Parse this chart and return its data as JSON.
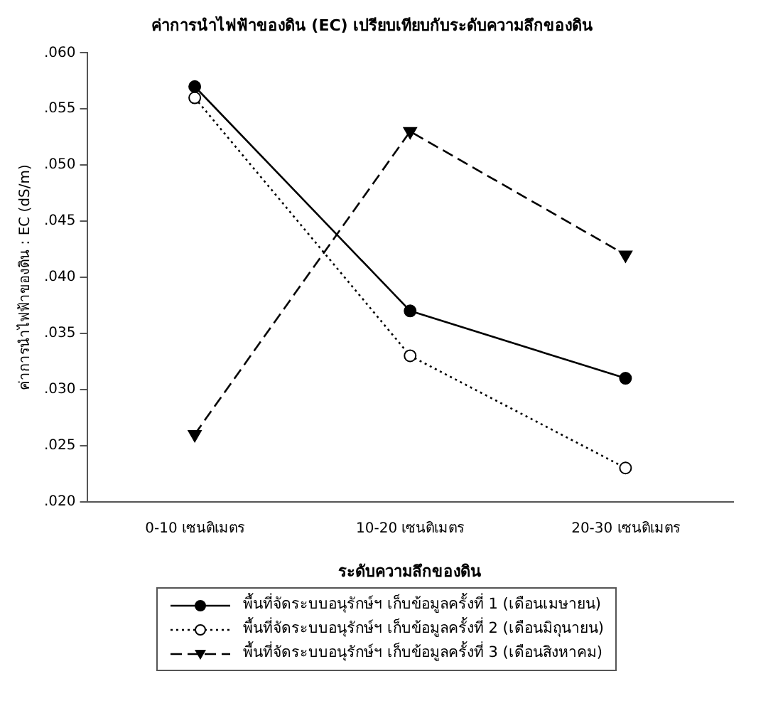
{
  "chart_data": {
    "type": "line",
    "title": "ค่าการนำไฟฟ้าของดิน (EC) เปรียบเทียบกับระดับความลึกของดิน",
    "xlabel": "ระดับความลึกของดิน",
    "ylabel": "ค่าการนำไฟฟ้าของดิน : EC (dS/m)",
    "categories": [
      "0-10 เซนติเมตร",
      "10-20 เซนติเมตร",
      "20-30 เซนติเมตร"
    ],
    "series": [
      {
        "name": "พื้นที่จัดระบบอนุรักษ์ฯ เก็บข้อมูลครั้งที่ 1 (เดือนเมษายน)",
        "color": "#000000",
        "values": [
          0.057,
          0.037,
          0.031
        ],
        "marker": "circle",
        "line_style": "solid"
      },
      {
        "name": "พื้นที่จัดระบบอนุรักษ์ฯ เก็บข้อมูลครั้งที่ 2 (เดือนมิถุนายน)",
        "color": "#000000",
        "values": [
          0.056,
          0.033,
          0.023
        ],
        "marker": "circle-open",
        "line_style": "dotted"
      },
      {
        "name": "พื้นที่จัดระบบอนุรักษ์ฯ เก็บข้อมูลครั้งที่ 3 (เดือนสิงหาคม)",
        "color": "#000000",
        "values": [
          0.026,
          0.053,
          0.042
        ],
        "marker": "triangle-down",
        "line_style": "dashed"
      }
    ],
    "ylim": [
      0.02,
      0.06
    ],
    "yticks": [
      {
        "value": 0.02,
        "label": ".020"
      },
      {
        "value": 0.025,
        "label": ".025"
      },
      {
        "value": 0.03,
        "label": ".030"
      },
      {
        "value": 0.035,
        "label": ".035"
      },
      {
        "value": 0.04,
        "label": ".040"
      },
      {
        "value": 0.045,
        "label": ".045"
      },
      {
        "value": 0.05,
        "label": ".050"
      },
      {
        "value": 0.055,
        "label": ".055"
      },
      {
        "value": 0.06,
        "label": ".060"
      }
    ],
    "grid": false,
    "legend": "bottom"
  }
}
